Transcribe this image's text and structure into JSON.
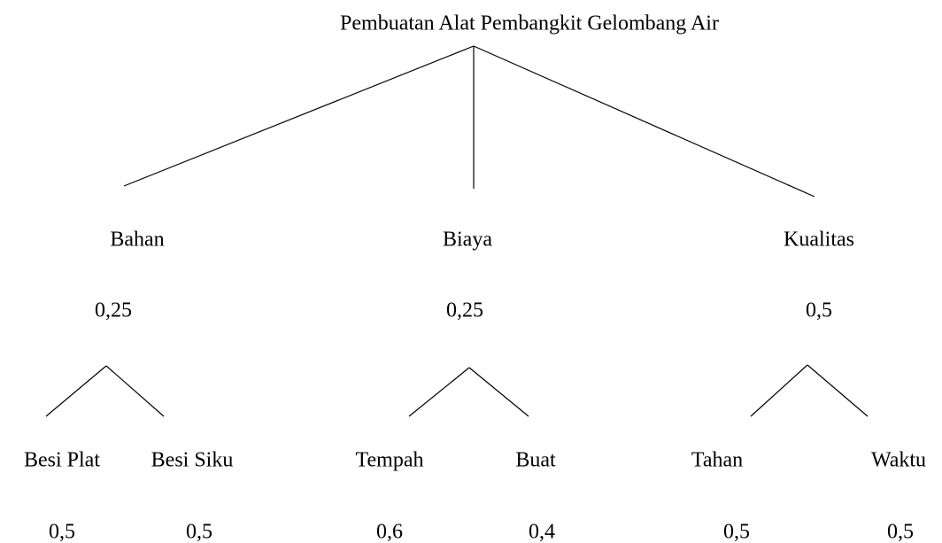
{
  "title": "Pembuatan Alat Pembangkit Gelombang Air",
  "nodes": [
    {
      "label": "Bahan",
      "weight": "0,25",
      "children": [
        {
          "label": "Besi Plat",
          "weight": "0,5"
        },
        {
          "label": "Besi Siku",
          "weight": "0,5"
        }
      ]
    },
    {
      "label": "Biaya",
      "weight": "0,25",
      "children": [
        {
          "label": "Tempah",
          "weight": "0,6"
        },
        {
          "label": "Buat",
          "weight": "0,4"
        }
      ]
    },
    {
      "label": "Kualitas",
      "weight": "0,5",
      "children": [
        {
          "label": "Tahan",
          "weight": "0,5"
        },
        {
          "label": "Waktu",
          "weight": "0,5"
        }
      ]
    }
  ]
}
